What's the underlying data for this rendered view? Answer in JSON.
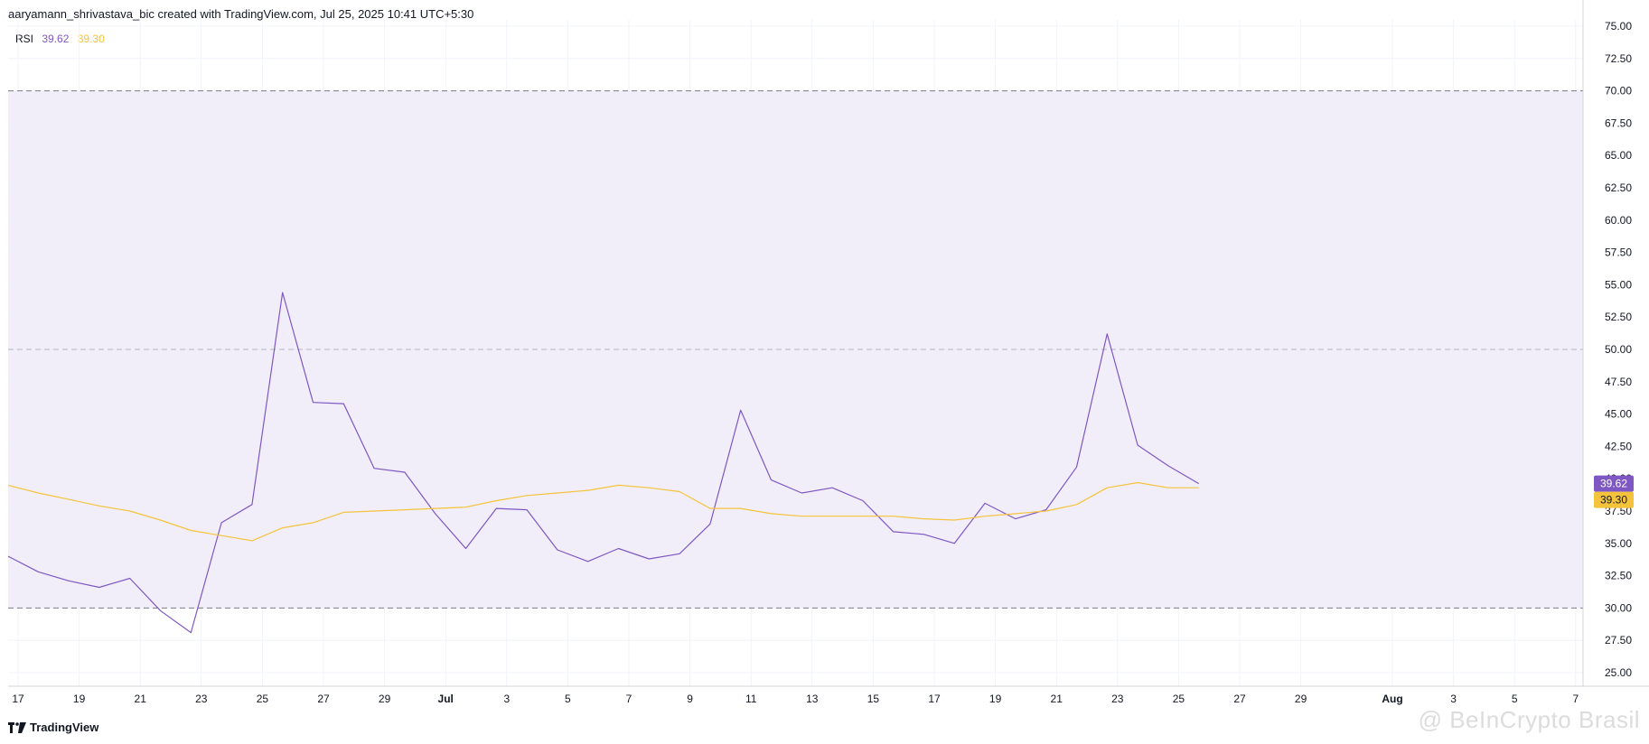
{
  "header": {
    "attribution": "aaryamann_shrivastava_bic created with TradingView.com, Jul 25, 2025 10:41 UTC+5:30"
  },
  "legend": {
    "label": "RSI",
    "rsi_value": "39.62",
    "ma_value": "39.30"
  },
  "footer": {
    "logo_text": "TradingView",
    "watermark": "@ BeInCrypto Brasil"
  },
  "colors": {
    "rsi_line": "#7e57c2",
    "ma_line": "#f5c33b",
    "band_fill": "#efebf9",
    "rsi_badge": "#7e57c2",
    "ma_badge": "#f5c33b"
  },
  "chart_data": {
    "type": "line",
    "ylim": [
      25,
      75
    ],
    "y_ticks": [
      "75.00",
      "72.50",
      "70.00",
      "67.50",
      "65.00",
      "62.50",
      "60.00",
      "57.50",
      "55.00",
      "52.50",
      "50.00",
      "47.50",
      "45.00",
      "42.50",
      "40.00",
      "37.50",
      "35.00",
      "32.50",
      "30.00",
      "27.50",
      "25.00"
    ],
    "x_ticks": [
      {
        "label": "17",
        "day": 0
      },
      {
        "label": "19",
        "day": 2
      },
      {
        "label": "21",
        "day": 4
      },
      {
        "label": "23",
        "day": 6
      },
      {
        "label": "25",
        "day": 8
      },
      {
        "label": "27",
        "day": 10
      },
      {
        "label": "29",
        "day": 12
      },
      {
        "label": "Jul",
        "day": 14,
        "bold": true
      },
      {
        "label": "3",
        "day": 16
      },
      {
        "label": "5",
        "day": 18
      },
      {
        "label": "7",
        "day": 20
      },
      {
        "label": "9",
        "day": 22
      },
      {
        "label": "11",
        "day": 24
      },
      {
        "label": "13",
        "day": 26
      },
      {
        "label": "15",
        "day": 28
      },
      {
        "label": "17",
        "day": 30
      },
      {
        "label": "19",
        "day": 32
      },
      {
        "label": "21",
        "day": 34
      },
      {
        "label": "23",
        "day": 36
      },
      {
        "label": "25",
        "day": 38
      },
      {
        "label": "27",
        "day": 40
      },
      {
        "label": "29",
        "day": 42
      },
      {
        "label": "Aug",
        "day": 45,
        "bold": true
      },
      {
        "label": "3",
        "day": 47
      },
      {
        "label": "5",
        "day": 49
      },
      {
        "label": "7",
        "day": 51
      }
    ],
    "bands": {
      "upper": 70,
      "middle": 50,
      "lower": 30
    },
    "series": [
      {
        "name": "RSI",
        "values": [
          34.0,
          32.8,
          32.1,
          31.6,
          32.3,
          29.8,
          28.1,
          36.6,
          38.0,
          54.4,
          45.9,
          45.8,
          40.8,
          40.5,
          37.3,
          34.6,
          37.7,
          37.6,
          34.5,
          33.6,
          34.6,
          33.8,
          34.2,
          36.5,
          45.3,
          39.9,
          38.9,
          39.3,
          38.3,
          35.9,
          35.7,
          35.0,
          38.1,
          36.9,
          37.6,
          40.9,
          51.2,
          42.6,
          41.0,
          39.62
        ]
      },
      {
        "name": "MA",
        "values": [
          39.5,
          38.9,
          38.4,
          37.9,
          37.5,
          36.8,
          36.0,
          35.6,
          35.2,
          36.2,
          36.6,
          37.4,
          37.5,
          37.6,
          37.7,
          37.8,
          38.3,
          38.7,
          38.9,
          39.1,
          39.5,
          39.3,
          39.0,
          37.7,
          37.7,
          37.3,
          37.1,
          37.1,
          37.1,
          37.1,
          36.9,
          36.8,
          37.1,
          37.3,
          37.5,
          38.0,
          39.3,
          39.7,
          39.3,
          39.3
        ]
      }
    ]
  }
}
